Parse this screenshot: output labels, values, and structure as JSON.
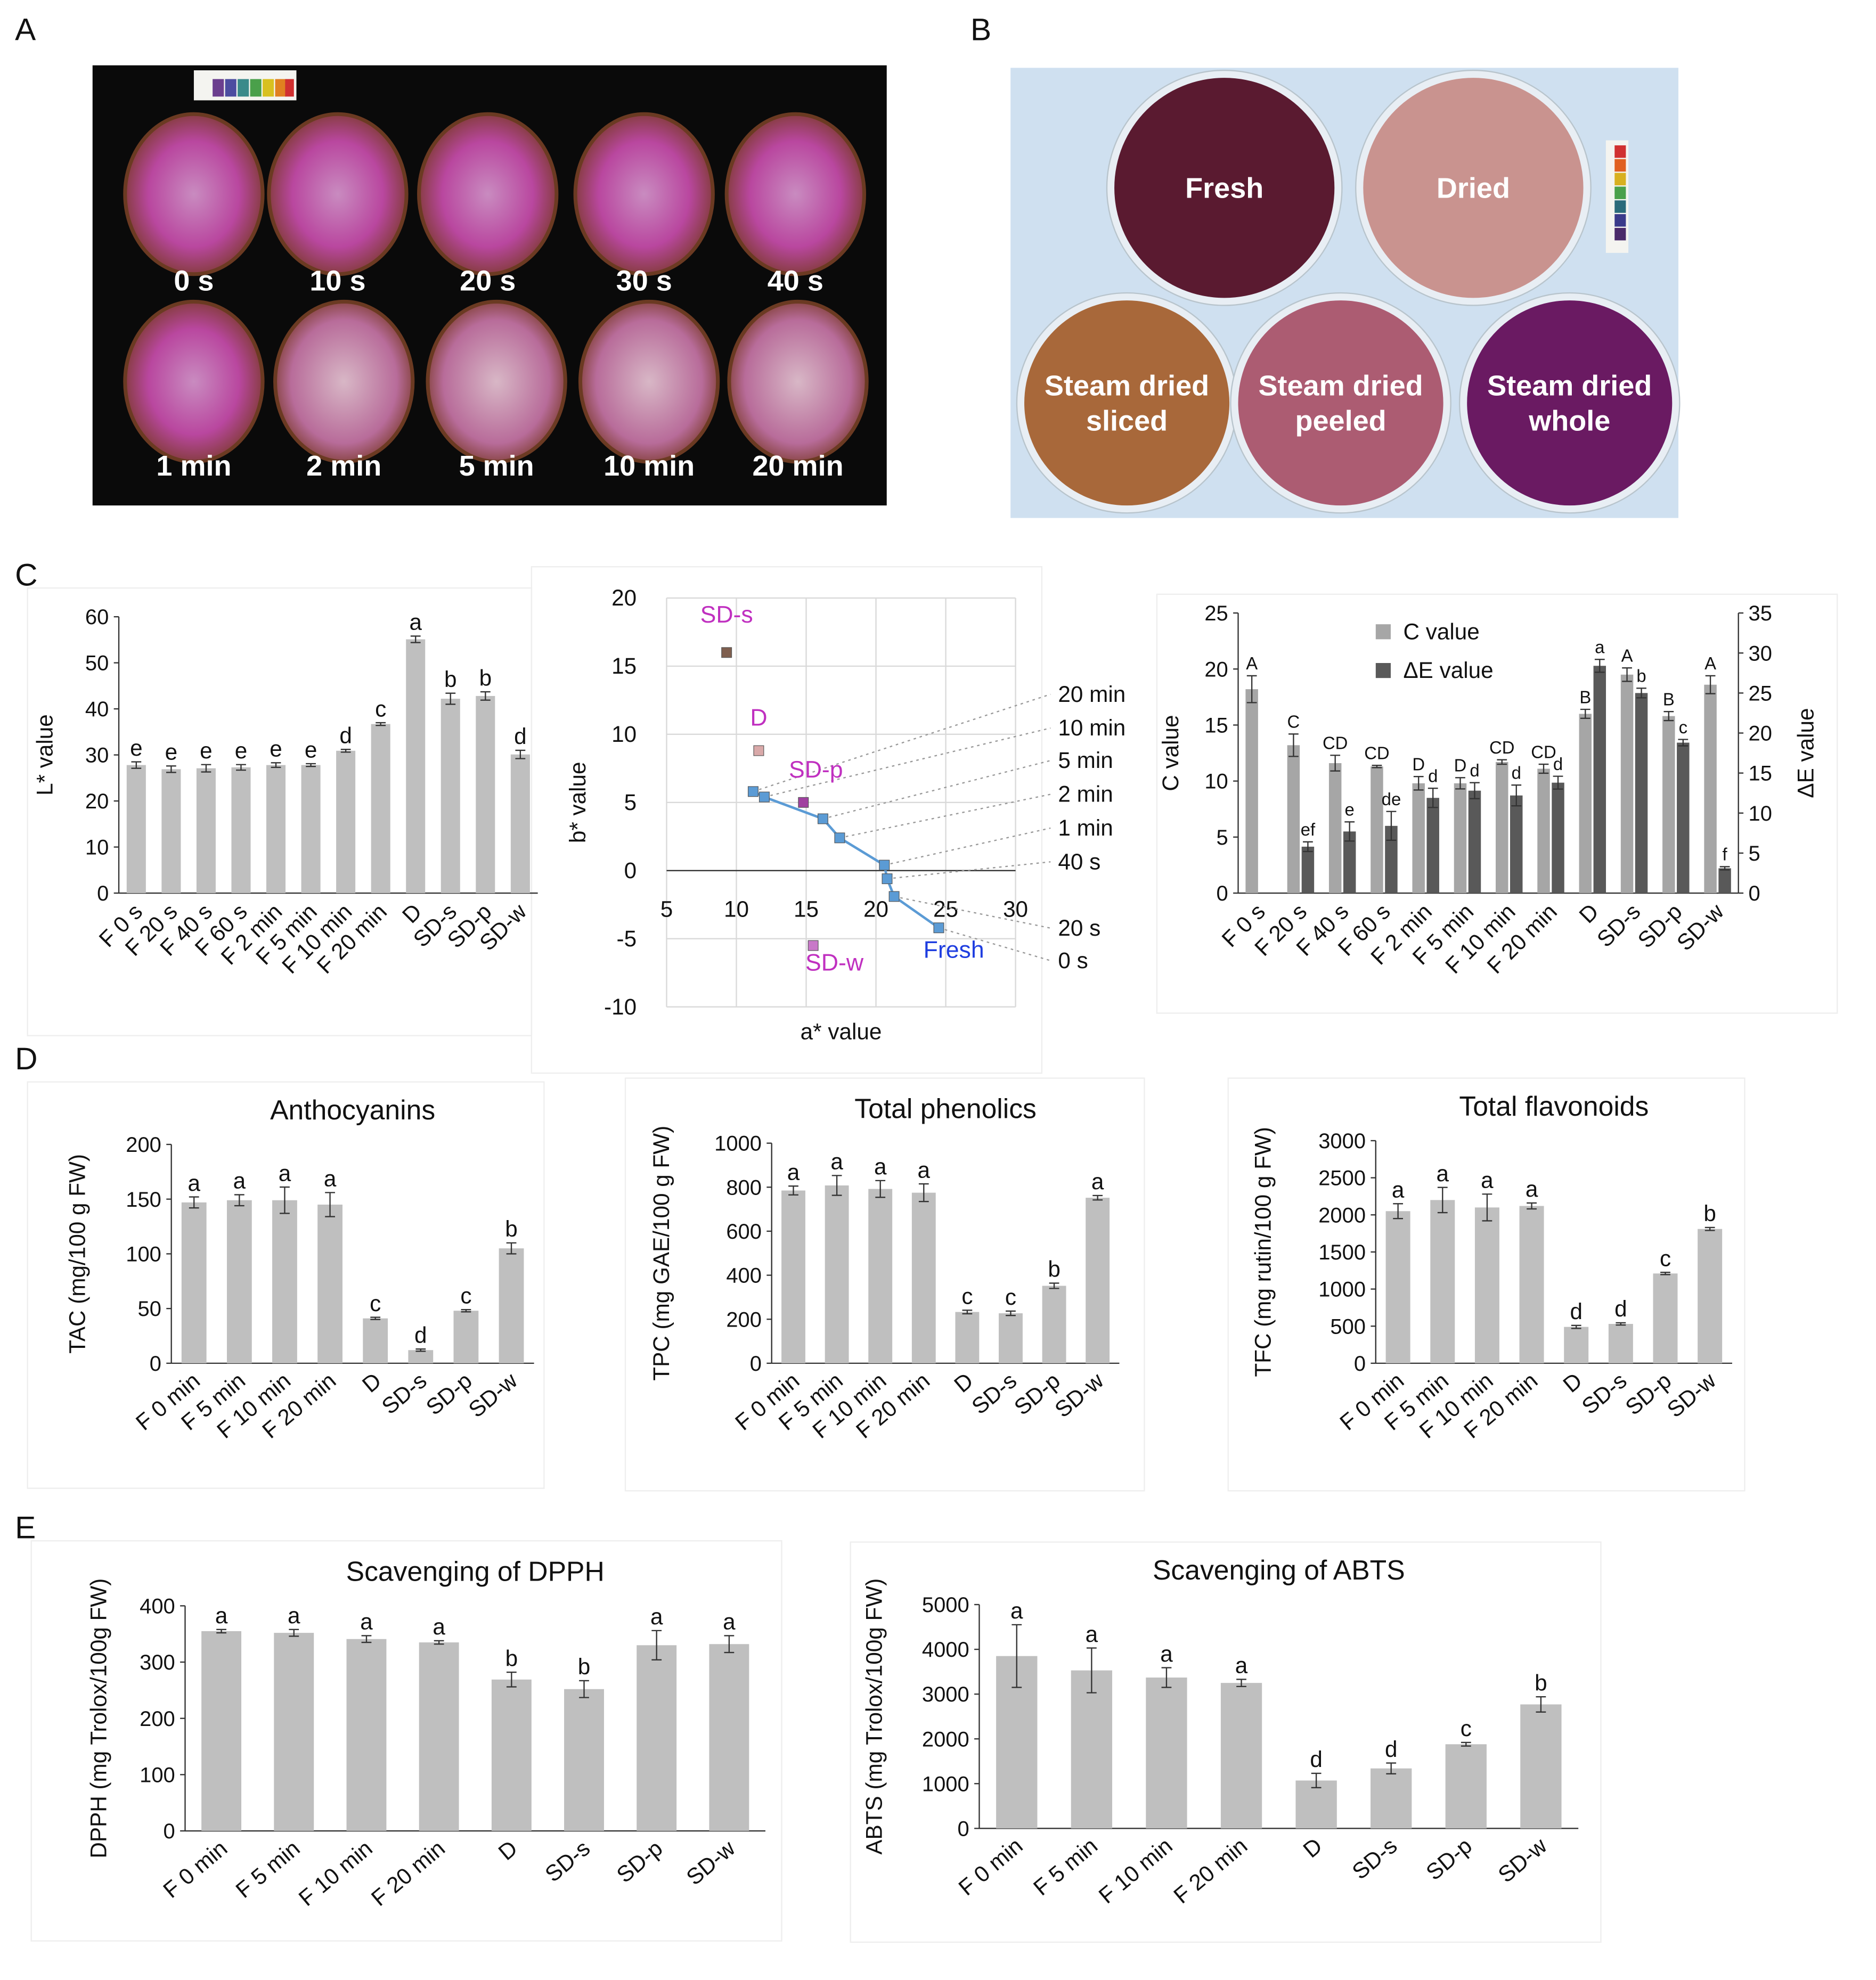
{
  "panel_labels": [
    "A",
    "B",
    "C",
    "D",
    "E"
  ],
  "photo_a": {
    "labels": [
      "0 s",
      "10 s",
      "20 s",
      "30 s",
      "40 s",
      "1 min",
      "2 min",
      "5 min",
      "10 min",
      "20 min"
    ]
  },
  "photo_b": {
    "labels": [
      [
        "Fresh"
      ],
      [
        "Dried"
      ],
      [
        "Steam dried",
        "sliced"
      ],
      [
        "Steam dried",
        "peeled"
      ],
      [
        "Steam dried",
        "whole"
      ]
    ]
  },
  "chart_data": [
    {
      "type": "bar",
      "y_label": "L* value",
      "categories": [
        "F 0 s",
        "F 20 s",
        "F 40 s",
        "F 60 s",
        "F 2 min",
        "F 5 min",
        "F 10 min",
        "F 20 min",
        "D",
        "SD-s",
        "SD-p",
        "SD-w"
      ],
      "values": [
        27.8,
        26.9,
        27.1,
        27.3,
        27.8,
        27.8,
        30.9,
        36.7,
        55.1,
        42.2,
        42.8,
        30.1
      ],
      "errors": [
        0.7,
        0.7,
        0.8,
        0.6,
        0.5,
        0.3,
        0.3,
        0.3,
        0.7,
        1.2,
        0.9,
        0.9
      ],
      "letters": [
        "e",
        "e",
        "e",
        "e",
        "e",
        "e",
        "d",
        "c",
        "a",
        "b",
        "b",
        "d"
      ],
      "color": "#bfbfbf",
      "ylim": [
        0,
        60
      ],
      "yticks": [
        0,
        10,
        20,
        30,
        40,
        50,
        60
      ]
    },
    {
      "type": "scatter",
      "x_label": "a* value",
      "y_label": "b* value",
      "xlim": [
        5,
        30
      ],
      "xticks": [
        5,
        10,
        15,
        20,
        25,
        30
      ],
      "ylim": [
        -10,
        20
      ],
      "yticks": [
        -10,
        -5,
        0,
        5,
        10,
        15,
        20
      ],
      "grid": true,
      "series": [
        {
          "name": "Fresh",
          "color": "#5b9bd5",
          "label_color": "#1f3ee0",
          "x": [
            24.5,
            21.3,
            20.8,
            20.6,
            17.4,
            16.2,
            12.0,
            11.2
          ],
          "y": [
            -4.2,
            -1.9,
            -0.6,
            0.4,
            2.4,
            3.8,
            5.4,
            5.8
          ],
          "point_labels": [
            "0 s",
            "20 s",
            "40 s",
            "1 min",
            "2 min",
            "5 min",
            "10 min",
            "20 min"
          ]
        },
        {
          "name": "SD-s",
          "color": "#7f5f4f",
          "label_color": "#c030c0",
          "x": [
            9.3
          ],
          "y": [
            16.0
          ]
        },
        {
          "name": "D",
          "color": "#d9a9a9",
          "label_color": "#c030c0",
          "x": [
            11.6
          ],
          "y": [
            8.8
          ]
        },
        {
          "name": "SD-p",
          "color": "#a040a0",
          "label_color": "#c030c0",
          "x": [
            14.8
          ],
          "y": [
            5.0
          ]
        },
        {
          "name": "SD-w",
          "color": "#c878c8",
          "label_color": "#c030c0",
          "x": [
            15.5
          ],
          "y": [
            -5.5
          ]
        }
      ]
    },
    {
      "type": "bar",
      "y_label": "C value",
      "y2_label": "ΔE value",
      "categories": [
        "F 0 s",
        "F 20 s",
        "F 40 s",
        "F 60 s",
        "F 2 min",
        "F 5 min",
        "F 10 min",
        "F 20 min",
        "D",
        "SD-s",
        "SD-p",
        "SD-w"
      ],
      "ylim": [
        0,
        25
      ],
      "yticks": [
        0,
        5,
        10,
        15,
        20,
        25
      ],
      "y2lim": [
        0,
        35
      ],
      "y2ticks": [
        0,
        5,
        10,
        15,
        20,
        25,
        30,
        35
      ],
      "series": [
        {
          "name": "C value",
          "color": "#a6a6a6",
          "values": [
            18.2,
            13.2,
            11.6,
            11.3,
            9.8,
            9.8,
            11.7,
            11.1,
            16.0,
            19.5,
            15.8,
            18.6
          ],
          "errors": [
            1.2,
            1.0,
            0.7,
            0.1,
            0.6,
            0.5,
            0.2,
            0.4,
            0.4,
            0.6,
            0.4,
            0.8
          ],
          "letters": [
            "A",
            "C",
            "CD",
            "CD",
            "D",
            "D",
            "CD",
            "CD",
            "B",
            "A",
            "B",
            "A"
          ]
        },
        {
          "name": "ΔE value",
          "color": "#595959",
          "axis": "y2",
          "values": [
            null,
            5.8,
            7.7,
            8.4,
            11.9,
            12.8,
            12.2,
            13.8,
            28.4,
            25.0,
            18.8,
            3.1
          ],
          "errors": [
            null,
            0.6,
            1.2,
            1.8,
            1.2,
            1.0,
            1.3,
            0.8,
            0.8,
            0.6,
            0.4,
            0.2
          ],
          "letters": [
            null,
            "ef",
            "e",
            "de",
            "d",
            "d",
            "d",
            "d",
            "a",
            "b",
            "c",
            "f"
          ]
        }
      ]
    },
    {
      "type": "bar",
      "title": "Anthocyanins",
      "y_label": "TAC (mg/100 g FW)",
      "categories": [
        "F 0 min",
        "F 5 min",
        "F 10 min",
        "F 20 min",
        "D",
        "SD-s",
        "SD-p",
        "SD-w"
      ],
      "values": [
        147,
        149,
        149,
        145,
        41,
        12,
        48,
        105
      ],
      "errors": [
        5,
        5,
        12,
        11,
        1,
        1,
        1,
        5
      ],
      "letters": [
        "a",
        "a",
        "a",
        "a",
        "c",
        "d",
        "c",
        "b"
      ],
      "color": "#bfbfbf",
      "ylim": [
        0,
        200
      ],
      "yticks": [
        0,
        50,
        100,
        150,
        200
      ]
    },
    {
      "type": "bar",
      "title": "Total phenolics",
      "y_label": "TPC (mg GAE/100 g FW)",
      "categories": [
        "F 0 min",
        "F 5 min",
        "F 10 min",
        "F 20 min",
        "D",
        "SD-s",
        "SD-p",
        "SD-w"
      ],
      "values": [
        785,
        808,
        792,
        775,
        233,
        227,
        352,
        752
      ],
      "errors": [
        20,
        45,
        38,
        40,
        8,
        10,
        12,
        10
      ],
      "letters": [
        "a",
        "a",
        "a",
        "a",
        "c",
        "c",
        "b",
        "a"
      ],
      "color": "#bfbfbf",
      "ylim": [
        0,
        1000
      ],
      "yticks": [
        0,
        200,
        400,
        600,
        800,
        1000
      ]
    },
    {
      "type": "bar",
      "title": "Total flavonoids",
      "y_label": "TFC (mg rutin/100 g FW)",
      "categories": [
        "F 0 min",
        "F 5 min",
        "F 10 min",
        "F 20 min",
        "D",
        "SD-s",
        "SD-p",
        "SD-w"
      ],
      "values": [
        2050,
        2200,
        2100,
        2120,
        490,
        530,
        1210,
        1810
      ],
      "errors": [
        100,
        170,
        180,
        40,
        20,
        15,
        15,
        20
      ],
      "letters": [
        "a",
        "a",
        "a",
        "a",
        "d",
        "d",
        "c",
        "b"
      ],
      "color": "#bfbfbf",
      "ylim": [
        0,
        3000
      ],
      "yticks": [
        0,
        500,
        1000,
        1500,
        2000,
        2500,
        3000
      ]
    },
    {
      "type": "bar",
      "title": "Scavenging of DPPH",
      "y_label": "DPPH (mg Trolox/100g FW)",
      "categories": [
        "F 0 min",
        "F 5 min",
        "F 10 min",
        "F 20 min",
        "D",
        "SD-s",
        "SD-p",
        "SD-w"
      ],
      "values": [
        355,
        352,
        341,
        335,
        269,
        252,
        330,
        332
      ],
      "errors": [
        3,
        6,
        6,
        3,
        13,
        15,
        26,
        15
      ],
      "letters": [
        "a",
        "a",
        "a",
        "a",
        "b",
        "b",
        "a",
        "a"
      ],
      "color": "#bfbfbf",
      "ylim": [
        0,
        400
      ],
      "yticks": [
        0,
        100,
        200,
        300,
        400
      ]
    },
    {
      "type": "bar",
      "title": "Scavenging of ABTS",
      "y_label": "ABTS (mg Trolox/100g FW)",
      "categories": [
        "F 0 min",
        "F 5 min",
        "F 10 min",
        "F 20 min",
        "D",
        "SD-s",
        "SD-p",
        "SD-w"
      ],
      "values": [
        3850,
        3530,
        3370,
        3250,
        1070,
        1340,
        1880,
        2770
      ],
      "errors": [
        700,
        500,
        220,
        80,
        160,
        120,
        40,
        170
      ],
      "letters": [
        "a",
        "a",
        "a",
        "a",
        "d",
        "d",
        "c",
        "b"
      ],
      "color": "#bfbfbf",
      "ylim": [
        0,
        5000
      ],
      "yticks": [
        0,
        1000,
        2000,
        3000,
        4000,
        5000
      ]
    }
  ]
}
